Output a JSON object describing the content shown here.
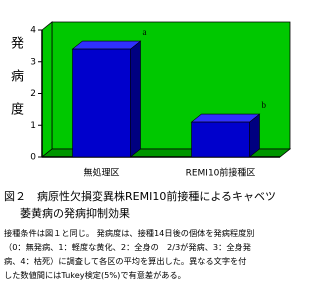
{
  "chart_data": {
    "type": "bar3d",
    "y_label": "発病度",
    "categories": [
      "無処理区",
      "REMI10前接種区"
    ],
    "values": [
      3.4,
      1.1
    ],
    "annotations": [
      "a",
      "b"
    ],
    "color": "#0000cc",
    "wall_color": "#00c800",
    "ylim": [
      0,
      4
    ],
    "yticks": [
      0,
      1,
      2,
      3,
      4
    ]
  },
  "caption": {
    "title_lines": [
      "図２　病原性欠損変異株REMI10前接種によるキャベツ",
      "萎黄病の発病抑制効果"
    ],
    "note_lines": [
      "接種条件は図１と同じ。 発病度は、接種14日後の個体を発病程度別",
      "（0：無発病、1：軽度な黄化、2：全身の　2/3が発病、3：全身発",
      "病、4：枯死）に調査して各区の平均を算出した。異なる文字を付",
      "した数値間にはTukey検定(5%)で有意差がある。"
    ]
  }
}
